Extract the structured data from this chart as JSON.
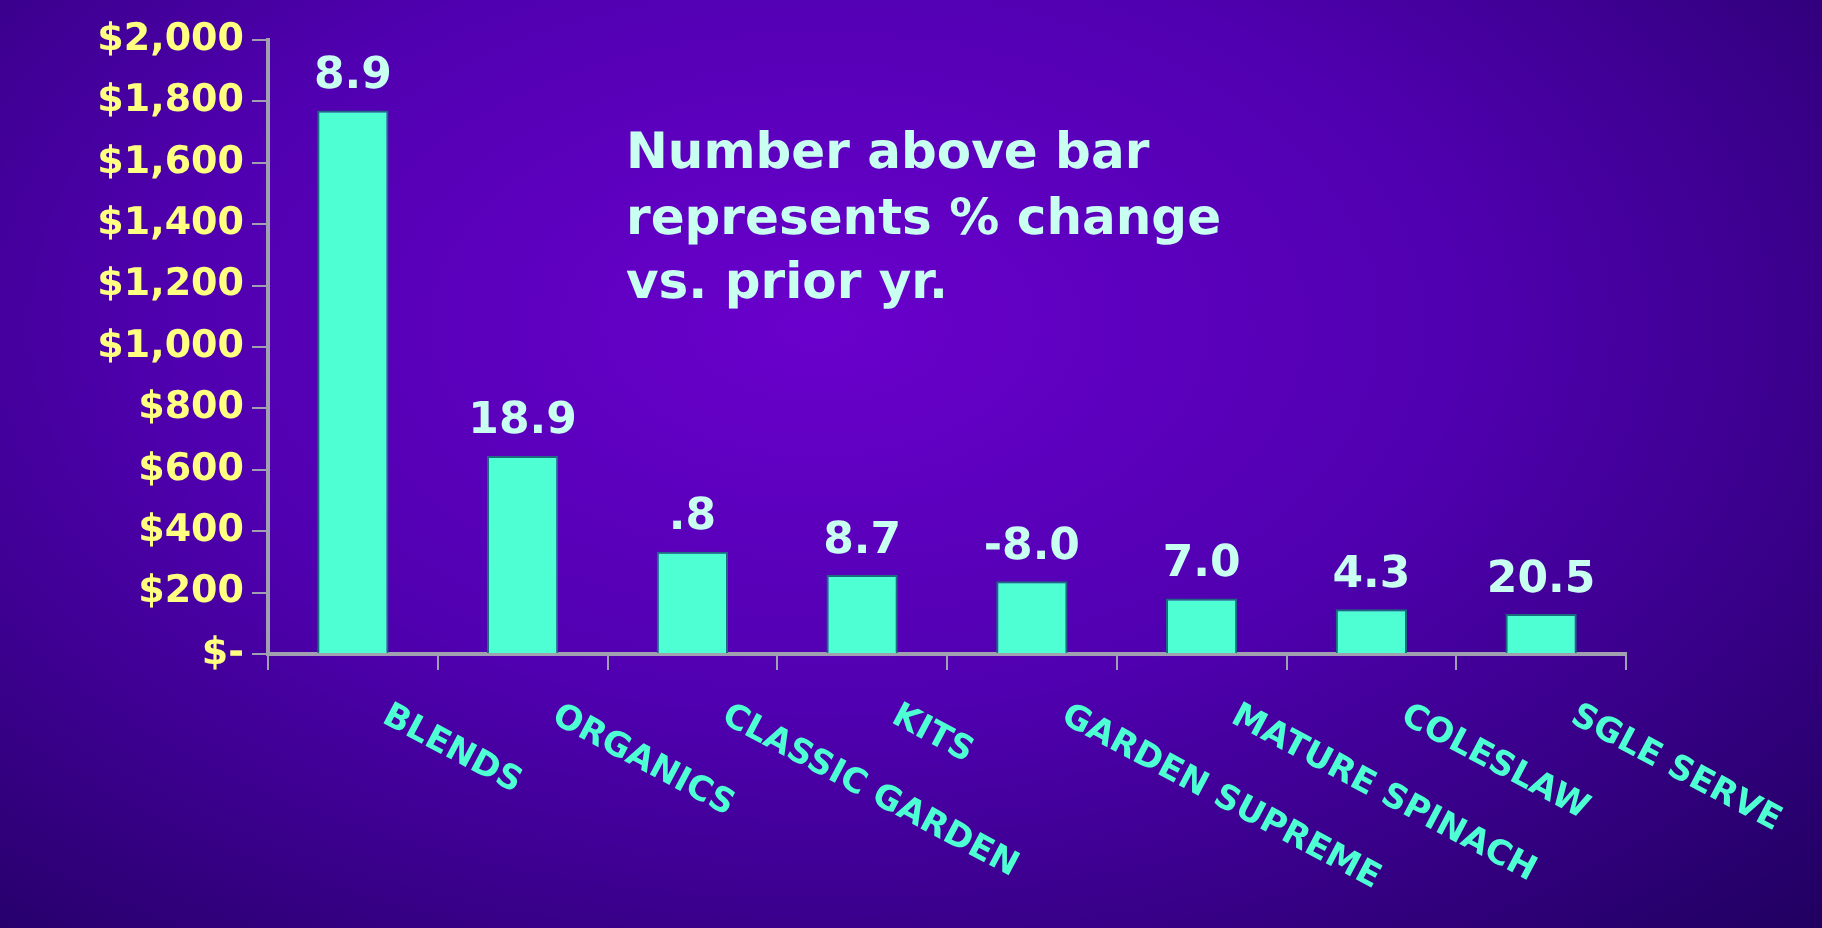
{
  "chart_data": {
    "type": "bar",
    "categories": [
      "BLENDS",
      "ORGANICS",
      "CLASSIC GARDEN",
      "KITS",
      "GARDEN SUPREME",
      "MATURE SPINACH",
      "COLESLAW",
      "SGLE SERVE"
    ],
    "values": [
      1770,
      645,
      333,
      257,
      237,
      181,
      146,
      130
    ],
    "color": "#4dffd2",
    "ylim": [
      0,
      2000
    ],
    "yticks": [
      {
        "value": 0,
        "label": "$-"
      },
      {
        "value": 200,
        "label": "$200"
      },
      {
        "value": 400,
        "label": "$400"
      },
      {
        "value": 600,
        "label": "$600"
      },
      {
        "value": 800,
        "label": "$800"
      },
      {
        "value": 1000,
        "label": "$1,000"
      },
      {
        "value": 1200,
        "label": "$1,200"
      },
      {
        "value": 1400,
        "label": "$1,400"
      },
      {
        "value": 1600,
        "label": "$1,600"
      },
      {
        "value": 1800,
        "label": "$1,800"
      },
      {
        "value": 2000,
        "label": "$2,000"
      }
    ],
    "annotations": [
      "Number above bar represents % change vs. prior yr.",
      {
        "text": "8.9",
        "x": "BLENDS",
        "y": 1770
      },
      {
        "text": "18.9",
        "x": "ORGANICS",
        "y": 645
      },
      {
        "text": ".8",
        "x": "CLASSIC GARDEN",
        "y": 333
      },
      {
        "text": "8.7",
        "x": "KITS",
        "y": 257
      },
      {
        "text": "-8.0",
        "x": "GARDEN SUPREME",
        "y": 237
      },
      {
        "text": "7.0",
        "x": "MATURE SPINACH",
        "y": 181
      },
      {
        "text": "4.3",
        "x": "COLESLAW",
        "y": 146
      },
      {
        "text": "20.5",
        "x": "SGLE SERVE",
        "y": 130
      }
    ],
    "grid": false,
    "legend": false
  }
}
